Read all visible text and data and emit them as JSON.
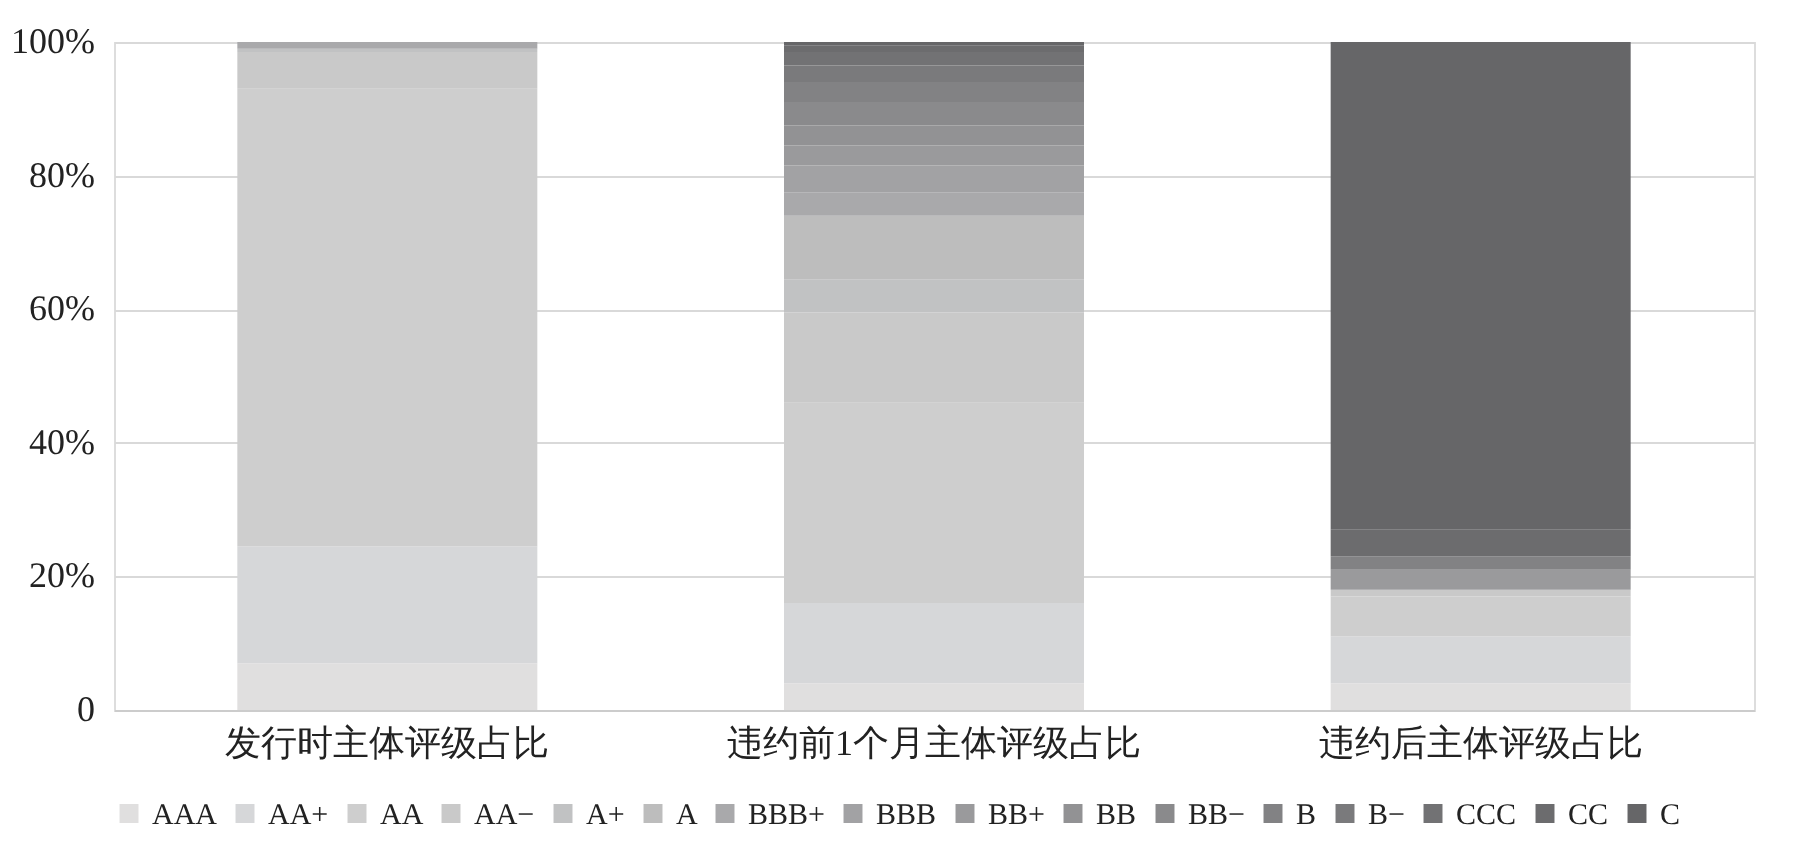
{
  "chart_data": {
    "type": "bar",
    "stacked": true,
    "categories": [
      "发行时主体评级占比",
      "违约前1个月主体评级占比",
      "违约后主体评级占比"
    ],
    "ylim": [
      0,
      100
    ],
    "yticks": [
      {
        "value": 0,
        "label": "0"
      },
      {
        "value": 20,
        "label": "20%"
      },
      {
        "value": 40,
        "label": "40%"
      },
      {
        "value": 60,
        "label": "60%"
      },
      {
        "value": 80,
        "label": "80%"
      },
      {
        "value": 100,
        "label": "100%"
      }
    ],
    "grid": "y",
    "legend": "bottom",
    "series": [
      {
        "name": "AAA",
        "color": "#e0dfdf",
        "values": [
          7,
          4,
          4
        ]
      },
      {
        "name": "AA+",
        "color": "#d6d7d9",
        "values": [
          17.5,
          12,
          7
        ]
      },
      {
        "name": "AA",
        "color": "#cecece",
        "values": [
          68.5,
          30,
          6
        ]
      },
      {
        "name": "AA−",
        "color": "#c9c9c9",
        "values": [
          5.5,
          13.5,
          1
        ]
      },
      {
        "name": "A+",
        "color": "#c1c2c3",
        "values": [
          0.5,
          5,
          0
        ]
      },
      {
        "name": "A",
        "color": "#bdbdbd",
        "values": [
          0,
          9.5,
          0
        ]
      },
      {
        "name": "BBB+",
        "color": "#a9a9ab",
        "values": [
          1,
          3.5,
          0
        ]
      },
      {
        "name": "BBB",
        "color": "#a2a2a4",
        "values": [
          0,
          4,
          0
        ]
      },
      {
        "name": "BB+",
        "color": "#9a9a9c",
        "values": [
          0,
          3,
          3
        ]
      },
      {
        "name": "BB",
        "color": "#929294",
        "values": [
          0,
          3,
          0
        ]
      },
      {
        "name": "BB−",
        "color": "#8a8a8c",
        "values": [
          0,
          3.5,
          0
        ]
      },
      {
        "name": "B",
        "color": "#828284",
        "values": [
          0,
          3,
          2
        ]
      },
      {
        "name": "B−",
        "color": "#7a7a7c",
        "values": [
          0,
          2.5,
          0
        ]
      },
      {
        "name": "CCC",
        "color": "#727274",
        "values": [
          0,
          2,
          0
        ]
      },
      {
        "name": "CC",
        "color": "#6c6c6e",
        "values": [
          0,
          1,
          4
        ]
      },
      {
        "name": "C",
        "color": "#666668",
        "values": [
          0,
          0.5,
          73
        ]
      }
    ]
  }
}
